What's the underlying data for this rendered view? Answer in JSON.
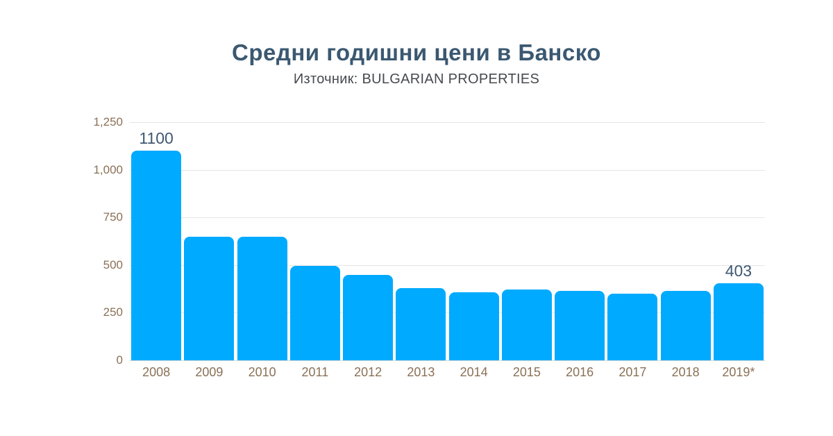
{
  "header": {
    "title": "Средни годишни цени в Банско",
    "subtitle": "Източник: BULGARIAN PROPERTIES"
  },
  "chart_data": {
    "type": "bar",
    "title": "Средни годишни цени в Банско",
    "subtitle": "Източник: BULGARIAN PROPERTIES",
    "categories": [
      "2008",
      "2009",
      "2010",
      "2011",
      "2012",
      "2013",
      "2014",
      "2015",
      "2016",
      "2017",
      "2018",
      "2019*"
    ],
    "values": [
      1100,
      650,
      650,
      497,
      450,
      380,
      357,
      370,
      365,
      349,
      364,
      403
    ],
    "point_labels": [
      "1100",
      null,
      null,
      null,
      null,
      null,
      null,
      null,
      null,
      null,
      null,
      "403"
    ],
    "xlabel": "",
    "ylabel": "",
    "ylim": [
      0,
      1250
    ],
    "yticks": [
      0,
      250,
      500,
      750,
      1000,
      1250
    ],
    "ytick_labels": [
      "0",
      "250",
      "500",
      "750",
      "1,000",
      "1,250"
    ],
    "grid": true,
    "legend": false
  },
  "colors": {
    "bar": "#00aaff",
    "title": "#3b5871",
    "subtitle": "#46494e",
    "axis_tick_labels": "#8a7156",
    "value_labels": "#3f5872",
    "gridline": "#e5e5e5",
    "background": "#ffffff"
  }
}
